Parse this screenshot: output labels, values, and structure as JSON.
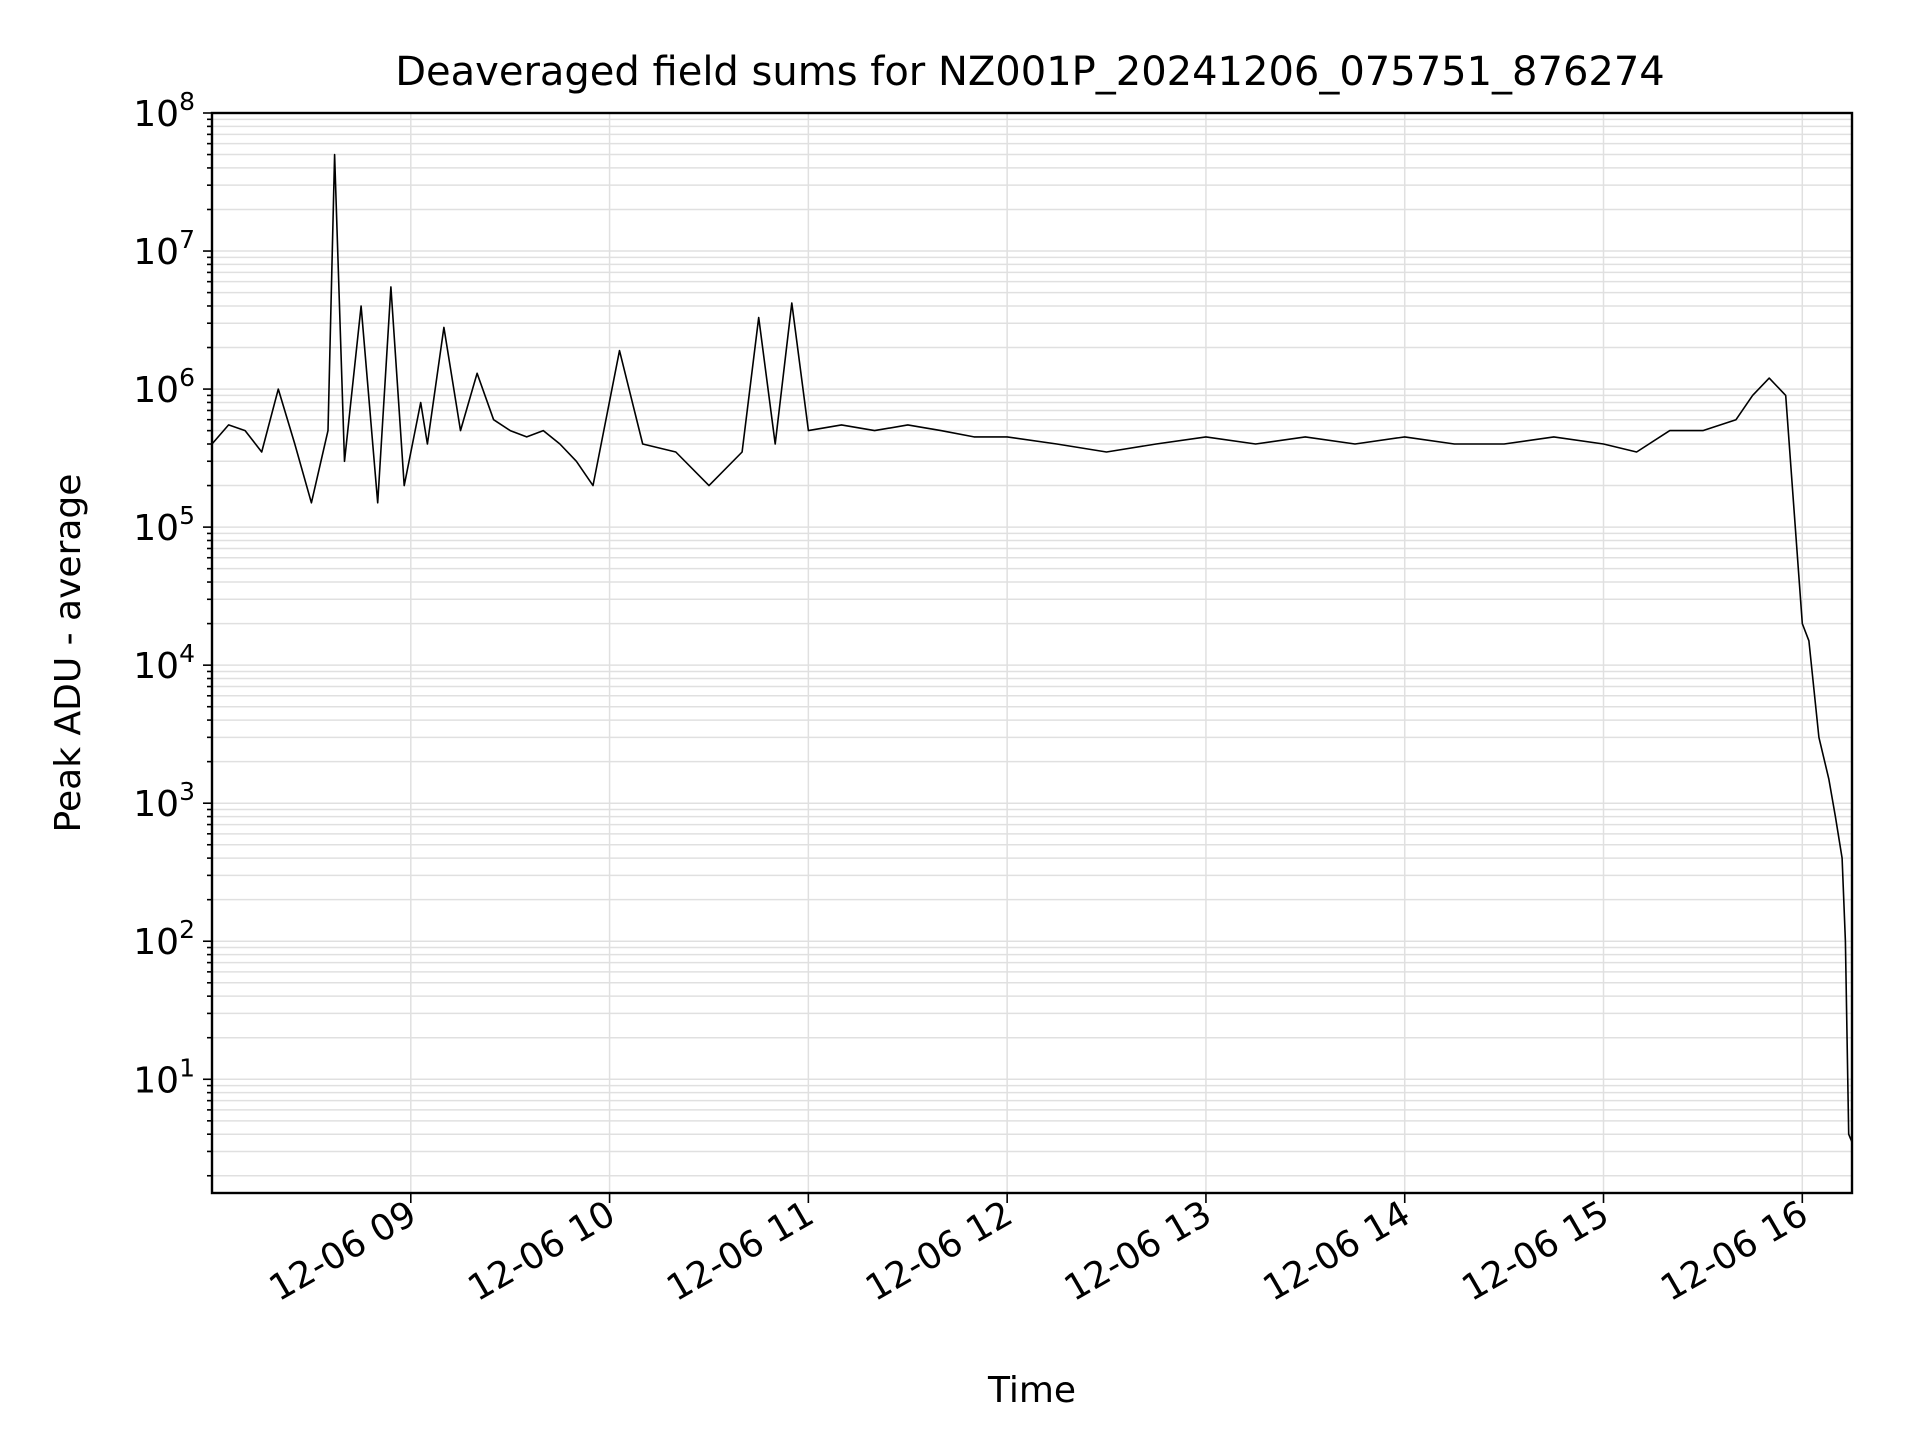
{
  "chart_data": {
    "type": "line",
    "title": "Deaveraged field sums for NZ001P_20241206_075751_876274",
    "xlabel": "Time",
    "ylabel": "Peak ADU - average",
    "yscale": "log",
    "ylim": [
      1.5,
      100000000
    ],
    "xlim": [
      "2024-12-06 08:00",
      "2024-12-06 16:15"
    ],
    "grid": true,
    "line_color": "#000000",
    "grid_color": "#e0e0e0",
    "x_ticks": [
      "12-06 09",
      "12-06 10",
      "12-06 11",
      "12-06 12",
      "12-06 13",
      "12-06 14",
      "12-06 15",
      "12-06 16"
    ],
    "y_ticks": [
      {
        "base": "10",
        "exp": "1"
      },
      {
        "base": "10",
        "exp": "2"
      },
      {
        "base": "10",
        "exp": "3"
      },
      {
        "base": "10",
        "exp": "4"
      },
      {
        "base": "10",
        "exp": "5"
      },
      {
        "base": "10",
        "exp": "6"
      },
      {
        "base": "10",
        "exp": "7"
      },
      {
        "base": "10",
        "exp": "8"
      }
    ],
    "series": [
      {
        "x": [
          "2024-12-06 08:00",
          "2024-12-06 08:05",
          "2024-12-06 08:10",
          "2024-12-06 08:15",
          "2024-12-06 08:20",
          "2024-12-06 08:25",
          "2024-12-06 08:30",
          "2024-12-06 08:35",
          "2024-12-06 08:37",
          "2024-12-06 08:40",
          "2024-12-06 08:45",
          "2024-12-06 08:50",
          "2024-12-06 08:54",
          "2024-12-06 08:58",
          "2024-12-06 09:03",
          "2024-12-06 09:05",
          "2024-12-06 09:10",
          "2024-12-06 09:15",
          "2024-12-06 09:20",
          "2024-12-06 09:25",
          "2024-12-06 09:30",
          "2024-12-06 09:35",
          "2024-12-06 09:40",
          "2024-12-06 09:45",
          "2024-12-06 09:50",
          "2024-12-06 09:55",
          "2024-12-06 10:03",
          "2024-12-06 10:10",
          "2024-12-06 10:20",
          "2024-12-06 10:30",
          "2024-12-06 10:40",
          "2024-12-06 10:45",
          "2024-12-06 10:50",
          "2024-12-06 10:55",
          "2024-12-06 11:00",
          "2024-12-06 11:10",
          "2024-12-06 11:20",
          "2024-12-06 11:30",
          "2024-12-06 11:40",
          "2024-12-06 11:50",
          "2024-12-06 12:00",
          "2024-12-06 12:15",
          "2024-12-06 12:30",
          "2024-12-06 12:45",
          "2024-12-06 13:00",
          "2024-12-06 13:15",
          "2024-12-06 13:30",
          "2024-12-06 13:45",
          "2024-12-06 14:00",
          "2024-12-06 14:15",
          "2024-12-06 14:30",
          "2024-12-06 14:45",
          "2024-12-06 15:00",
          "2024-12-06 15:10",
          "2024-12-06 15:20",
          "2024-12-06 15:30",
          "2024-12-06 15:40",
          "2024-12-06 15:45",
          "2024-12-06 15:50",
          "2024-12-06 15:55",
          "2024-12-06 16:00",
          "2024-12-06 16:02",
          "2024-12-06 16:05",
          "2024-12-06 16:08",
          "2024-12-06 16:10",
          "2024-12-06 16:12",
          "2024-12-06 16:13",
          "2024-12-06 16:14",
          "2024-12-06 16:15"
        ],
        "y": [
          400000,
          550000,
          500000,
          350000,
          1000000,
          400000,
          150000,
          500000,
          50000000,
          300000,
          4000000,
          150000,
          5500000,
          200000,
          800000,
          400000,
          2800000,
          500000,
          1300000,
          600000,
          500000,
          450000,
          500000,
          400000,
          300000,
          200000,
          1900000,
          400000,
          350000,
          200000,
          350000,
          3300000,
          400000,
          4200000,
          500000,
          550000,
          500000,
          550000,
          500000,
          450000,
          450000,
          400000,
          350000,
          400000,
          450000,
          400000,
          450000,
          400000,
          450000,
          400000,
          400000,
          450000,
          400000,
          350000,
          500000,
          500000,
          600000,
          900000,
          1200000,
          900000,
          20000,
          15000,
          3000,
          1500,
          800,
          400,
          100,
          4,
          3.5
        ]
      }
    ]
  }
}
